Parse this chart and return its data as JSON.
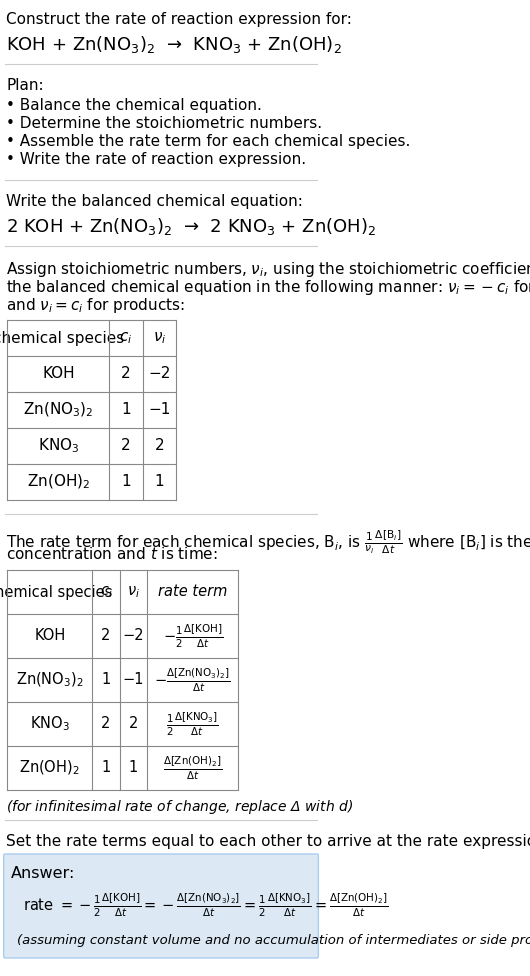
{
  "title_line1": "Construct the rate of reaction expression for:",
  "title_line2": "KOH + Zn(NO$_3$)$_2$  →  KNO$_3$ + Zn(OH)$_2$",
  "plan_header": "Plan:",
  "plan_items": [
    "• Balance the chemical equation.",
    "• Determine the stoichiometric numbers.",
    "• Assemble the rate term for each chemical species.",
    "• Write the rate of reaction expression."
  ],
  "balanced_header": "Write the balanced chemical equation:",
  "balanced_eq": "2 KOH + Zn(NO$_3$)$_2$  →  2 KNO$_3$ + Zn(OH)$_2$",
  "stoich_intro": "Assign stoichiometric numbers, $\\nu_i$, using the stoichiometric coefficients, $c_i$, from\nthe balanced chemical equation in the following manner: $\\nu_i = -c_i$ for reactants\nand $\\nu_i = c_i$ for products:",
  "table1_headers": [
    "chemical species",
    "$c_i$",
    "$\\nu_i$"
  ],
  "table1_rows": [
    [
      "KOH",
      "2",
      "−2"
    ],
    [
      "Zn(NO$_3$)$_2$",
      "1",
      "−1"
    ],
    [
      "KNO$_3$",
      "2",
      "2"
    ],
    [
      "Zn(OH)$_2$",
      "1",
      "1"
    ]
  ],
  "rate_term_intro": "The rate term for each chemical species, B$_i$, is $\\frac{1}{\\nu_i}\\frac{\\Delta[\\mathrm{B}_i]}{\\Delta t}$ where [B$_i$] is the amount\nconcentration and $t$ is time:",
  "table2_headers": [
    "chemical species",
    "$c_i$",
    "$\\nu_i$",
    "rate term"
  ],
  "table2_rows": [
    [
      "KOH",
      "2",
      "−2",
      "$-\\frac{1}{2}\\frac{\\Delta[\\mathrm{KOH}]}{\\Delta t}$"
    ],
    [
      "Zn(NO$_3$)$_2$",
      "1",
      "−1",
      "$-\\frac{\\Delta[\\mathrm{Zn(NO_3)_2}]}{\\Delta t}$"
    ],
    [
      "KNO$_3$",
      "2",
      "2",
      "$\\frac{1}{2}\\frac{\\Delta[\\mathrm{KNO_3}]}{\\Delta t}$"
    ],
    [
      "Zn(OH)$_2$",
      "1",
      "1",
      "$\\frac{\\Delta[\\mathrm{Zn(OH)_2}]}{\\Delta t}$"
    ]
  ],
  "infinitesimal_note": "(for infinitesimal rate of change, replace Δ with $d$)",
  "set_equal_header": "Set the rate terms equal to each other to arrive at the rate expression:",
  "answer_label": "Answer:",
  "answer_box_color": "#dce9f5",
  "answer_rate_expr": "rate $= -\\frac{1}{2}\\frac{\\Delta[\\mathrm{KOH}]}{\\Delta t} = -\\frac{\\Delta[\\mathrm{Zn(NO_3)_2}]}{\\Delta t} = \\frac{1}{2}\\frac{\\Delta[\\mathrm{KNO_3}]}{\\Delta t} = \\frac{\\Delta[\\mathrm{Zn(OH)_2}]}{\\Delta t}$",
  "answer_note": "(assuming constant volume and no accumulation of intermediates or side products)",
  "bg_color": "#ffffff",
  "text_color": "#000000",
  "table_border_color": "#aaaaaa",
  "separator_color": "#cccccc"
}
